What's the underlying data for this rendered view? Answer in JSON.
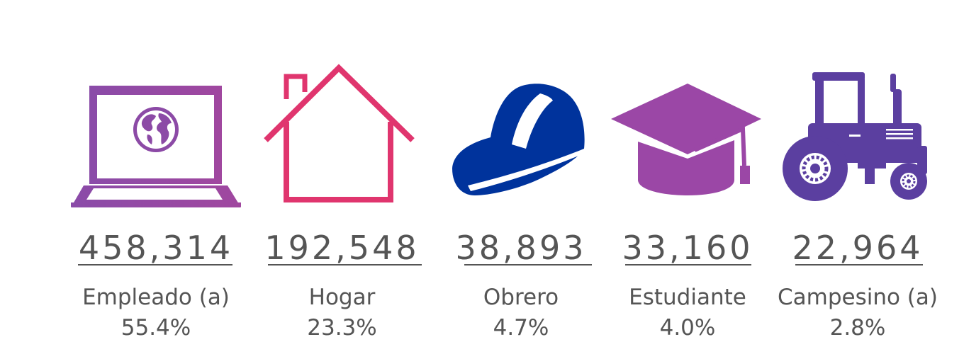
{
  "chart_data": {
    "type": "table",
    "categories": [
      "Empleado (a)",
      "Hogar",
      "Obrero",
      "Estudiante",
      "Campesino (a)"
    ],
    "values": [
      458314,
      192548,
      38893,
      33160,
      22964
    ],
    "percentages": [
      "55.4%",
      "23.3%",
      "4.7%",
      "4.0%",
      "2.8%"
    ]
  },
  "items": [
    {
      "value": "458,314",
      "label": "Empleado (a)",
      "pct": "55.4%",
      "icon": "laptop-globe-icon",
      "color": "#9b47a6"
    },
    {
      "value": "192,548",
      "label": "Hogar",
      "pct": "23.3%",
      "icon": "house-icon",
      "color": "#e0356e"
    },
    {
      "value": "38,893",
      "label": "Obrero",
      "pct": "4.7%",
      "icon": "hard-hat-icon",
      "color": "#00339c"
    },
    {
      "value": "33,160",
      "label": "Estudiante",
      "pct": "4.0%",
      "icon": "graduation-cap-icon",
      "color": "#9b47a6"
    },
    {
      "value": "22,964",
      "label": "Campesino (a)",
      "pct": "2.8%",
      "icon": "tractor-icon",
      "color": "#5b3fa0"
    }
  ]
}
